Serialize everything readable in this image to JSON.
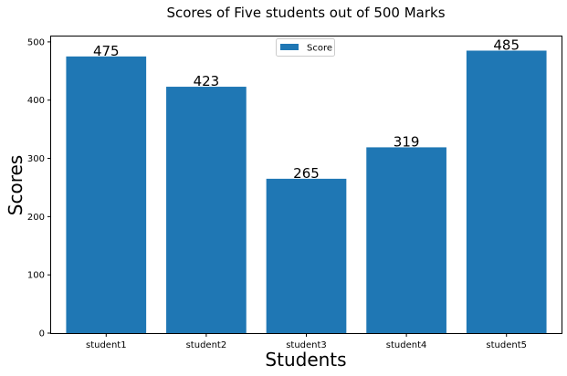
{
  "chart_data": {
    "type": "bar",
    "title": "Scores of Five students out of 500 Marks",
    "xlabel": "Students",
    "ylabel": "Scores",
    "categories": [
      "student1",
      "student2",
      "student3",
      "student4",
      "student5"
    ],
    "series": [
      {
        "name": "Score",
        "values": [
          475,
          423,
          265,
          319,
          485
        ],
        "color": "#1f77b4"
      }
    ],
    "data_labels": [
      "475",
      "423",
      "265",
      "319",
      "485"
    ],
    "yticks": [
      0,
      100,
      200,
      300,
      400,
      500
    ],
    "ytick_labels": [
      "0",
      "100",
      "200",
      "300",
      "400",
      "500"
    ],
    "ylim": [
      0,
      509.25
    ],
    "grid": false,
    "legend_position": "top-center"
  }
}
